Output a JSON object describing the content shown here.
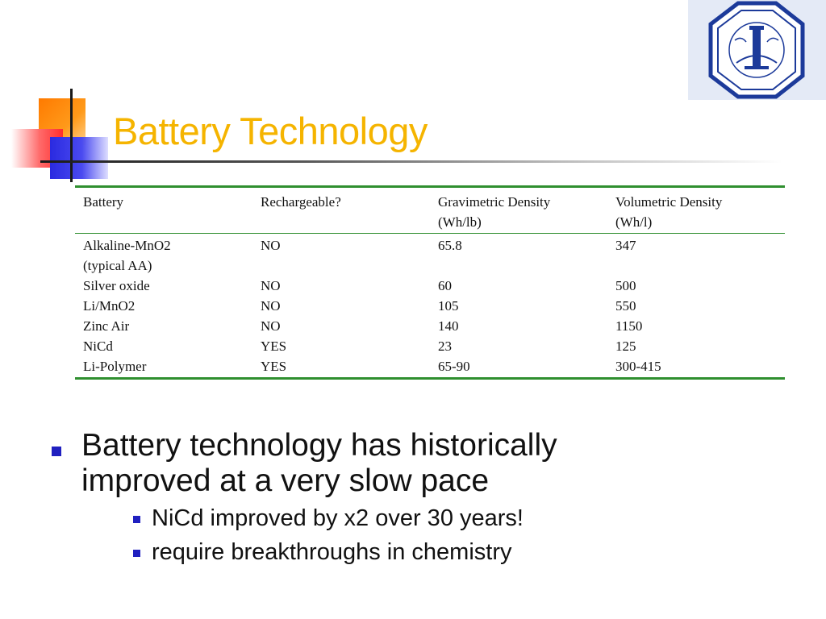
{
  "slide": {
    "title": "Battery Technology",
    "logo_icon": "university-seal-icon"
  },
  "table": {
    "headers": [
      [
        "Battery"
      ],
      [
        "Rechargeable?"
      ],
      [
        "Gravimetric Density",
        "(Wh/lb)"
      ],
      [
        "Volumetric Density",
        "(Wh/l)"
      ]
    ],
    "rows": [
      [
        [
          "Alkaline-MnO2",
          "(typical AA)"
        ],
        [
          "NO"
        ],
        [
          "65.8"
        ],
        [
          "347"
        ]
      ],
      [
        [
          "Silver oxide"
        ],
        [
          "NO"
        ],
        [
          "60"
        ],
        [
          "500"
        ]
      ],
      [
        [
          "Li/MnO2"
        ],
        [
          "NO"
        ],
        [
          "105"
        ],
        [
          "550"
        ]
      ],
      [
        [
          "Zinc Air"
        ],
        [
          "NO"
        ],
        [
          "140"
        ],
        [
          "1150"
        ]
      ],
      [
        [
          "NiCd"
        ],
        [
          "YES"
        ],
        [
          "23"
        ],
        [
          "125"
        ]
      ],
      [
        [
          "Li-Polymer"
        ],
        [
          "YES"
        ],
        [
          "65-90"
        ],
        [
          "300-415"
        ]
      ]
    ]
  },
  "bullets": {
    "main": [
      "Battery technology has historically",
      "improved at a very slow pace"
    ],
    "sub": [
      "NiCd improved by x2 over 30 years!",
      "require breakthroughs in chemistry"
    ]
  },
  "colors": {
    "title": "#f5b400",
    "table_rule": "#2f8f2f",
    "bullet": "#2020c0"
  }
}
